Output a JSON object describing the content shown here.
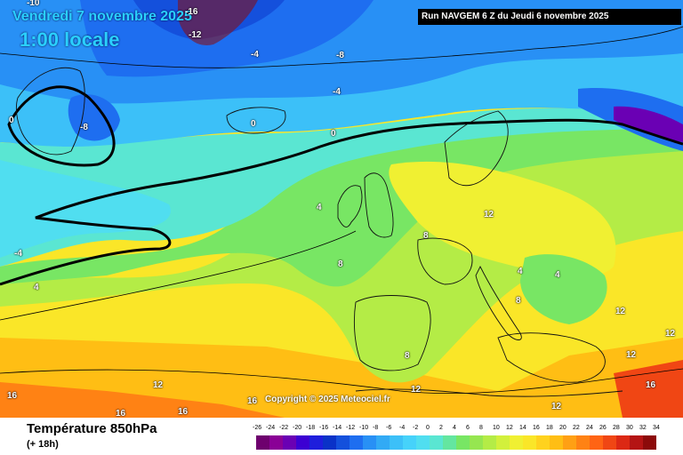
{
  "header": {
    "date": "Vendredi 7 novembre 2025",
    "time": "1:00 locale",
    "run": "Run NAVGEM 6 Z du Jeudi 6 novembre 2025"
  },
  "copyright": "Copyright © 2025 Meteociel.fr",
  "footer": {
    "title": "Température 850hPa",
    "subtitle": "(+ 18h)"
  },
  "legend": {
    "ticks": [
      "-26",
      "-24",
      "-22",
      "-20",
      "-18",
      "-16",
      "-14",
      "-12",
      "-10",
      "-8",
      "-6",
      "-4",
      "-2",
      "0",
      "2",
      "4",
      "6",
      "8",
      "10",
      "12",
      "14",
      "16",
      "18",
      "20",
      "22",
      "24",
      "26",
      "28",
      "30",
      "32",
      "34"
    ],
    "colors": [
      "#6e006e",
      "#8a0096",
      "#6a00b4",
      "#3c00d2",
      "#1e1edc",
      "#0a32c8",
      "#1450dc",
      "#1e6ef0",
      "#2890f5",
      "#32aaf5",
      "#3cc0f8",
      "#46d2fa",
      "#50def0",
      "#5ae6d2",
      "#64e6a0",
      "#78e664",
      "#96e650",
      "#b4ec46",
      "#d2f03c",
      "#f0f032",
      "#fae628",
      "#ffd21e",
      "#ffbe14",
      "#ffa014",
      "#ff8214",
      "#ff6414",
      "#f04614",
      "#dc2814",
      "#b41414",
      "#8c0a0a"
    ]
  },
  "contours": [
    {
      "value": "-10"
    },
    {
      "value": "-16"
    },
    {
      "value": "-12"
    },
    {
      "value": "-4"
    },
    {
      "value": "-8"
    },
    {
      "value": "-4"
    },
    {
      "value": "0"
    },
    {
      "value": "-8"
    },
    {
      "value": "0"
    },
    {
      "value": "0"
    },
    {
      "value": "4"
    },
    {
      "value": "8"
    },
    {
      "value": "12"
    },
    {
      "value": "4"
    },
    {
      "value": "8"
    },
    {
      "value": "-4"
    },
    {
      "value": "4"
    },
    {
      "value": "8"
    },
    {
      "value": "12"
    },
    {
      "value": "12"
    },
    {
      "value": "12"
    },
    {
      "value": "12"
    },
    {
      "value": "16"
    },
    {
      "value": "12"
    },
    {
      "value": "16"
    },
    {
      "value": "16"
    },
    {
      "value": "16"
    },
    {
      "value": "12"
    },
    {
      "value": "16"
    },
    {
      "value": "8"
    },
    {
      "value": "4"
    }
  ]
}
